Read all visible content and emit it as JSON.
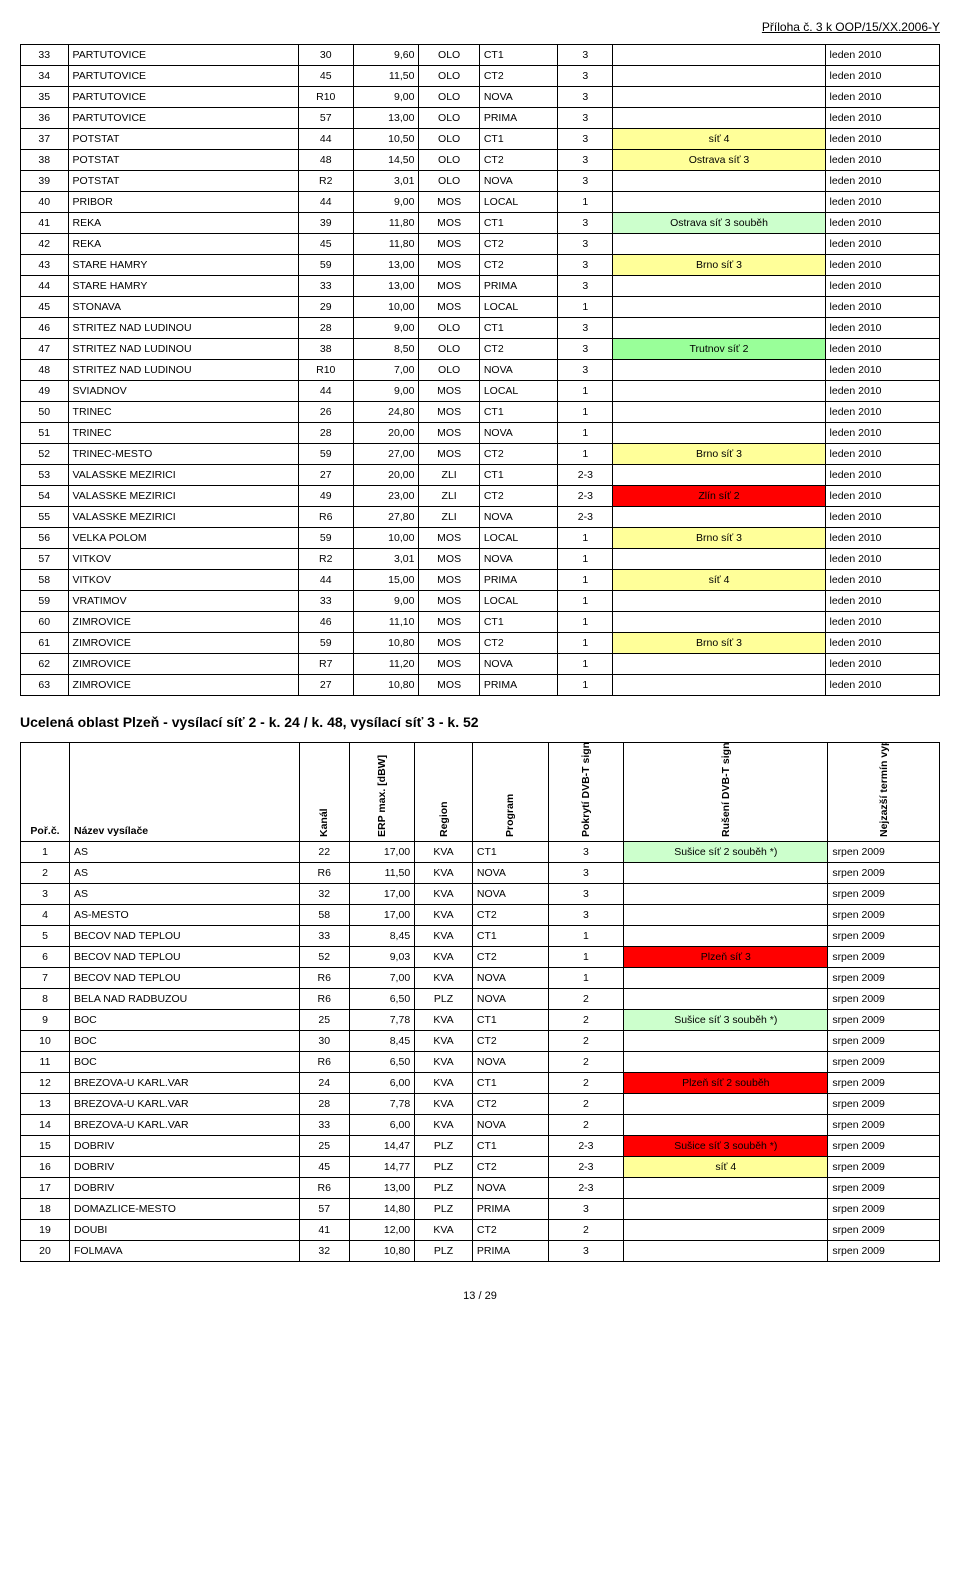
{
  "page_header": "Příloha č. 3 k OOP/15/XX.2006-Y",
  "page_footer": "13 / 29",
  "colors": {
    "yellow": "#ffff99",
    "green": "#ccffcc",
    "lgreen": "#99ff99",
    "red": "#ff0000",
    "yellow2": "#ffff66"
  },
  "table1": {
    "rows": [
      [
        33,
        "PARTUTOVICE",
        "30",
        "9,60",
        "OLO",
        "CT1",
        "3",
        "",
        "",
        "leden 2010"
      ],
      [
        34,
        "PARTUTOVICE",
        "45",
        "11,50",
        "OLO",
        "CT2",
        "3",
        "",
        "",
        "leden 2010"
      ],
      [
        35,
        "PARTUTOVICE",
        "R10",
        "9,00",
        "OLO",
        "NOVA",
        "3",
        "",
        "",
        "leden 2010"
      ],
      [
        36,
        "PARTUTOVICE",
        "57",
        "13,00",
        "OLO",
        "PRIMA",
        "3",
        "",
        "",
        "leden 2010"
      ],
      [
        37,
        "POTSTAT",
        "44",
        "10,50",
        "OLO",
        "CT1",
        "3",
        "",
        "síť 4",
        "leden 2010",
        "yellow"
      ],
      [
        38,
        "POTSTAT",
        "48",
        "14,50",
        "OLO",
        "CT2",
        "3",
        "",
        "Ostrava síť 3",
        "leden 2010",
        "yellow"
      ],
      [
        39,
        "POTSTAT",
        "R2",
        "3,01",
        "OLO",
        "NOVA",
        "3",
        "",
        "",
        "leden 2010"
      ],
      [
        40,
        "PRIBOR",
        "44",
        "9,00",
        "MOS",
        "LOCAL",
        "1",
        "",
        "",
        "leden 2010"
      ],
      [
        41,
        "REKA",
        "39",
        "11,80",
        "MOS",
        "CT1",
        "3",
        "",
        "Ostrava síť 3 souběh",
        "leden 2010",
        "green"
      ],
      [
        42,
        "REKA",
        "45",
        "11,80",
        "MOS",
        "CT2",
        "3",
        "",
        "",
        "leden 2010"
      ],
      [
        43,
        "STARE HAMRY",
        "59",
        "13,00",
        "MOS",
        "CT2",
        "3",
        "",
        "Brno síť 3",
        "leden 2010",
        "yellow"
      ],
      [
        44,
        "STARE HAMRY",
        "33",
        "13,00",
        "MOS",
        "PRIMA",
        "3",
        "",
        "",
        "leden 2010"
      ],
      [
        45,
        "STONAVA",
        "29",
        "10,00",
        "MOS",
        "LOCAL",
        "1",
        "",
        "",
        "leden 2010"
      ],
      [
        46,
        "STRITEZ NAD LUDINOU",
        "28",
        "9,00",
        "OLO",
        "CT1",
        "3",
        "",
        "",
        "leden 2010"
      ],
      [
        47,
        "STRITEZ NAD LUDINOU",
        "38",
        "8,50",
        "OLO",
        "CT2",
        "3",
        "",
        "Trutnov síť 2",
        "leden 2010",
        "lgreen"
      ],
      [
        48,
        "STRITEZ NAD LUDINOU",
        "R10",
        "7,00",
        "OLO",
        "NOVA",
        "3",
        "",
        "",
        "leden 2010"
      ],
      [
        49,
        "SVIADNOV",
        "44",
        "9,00",
        "MOS",
        "LOCAL",
        "1",
        "",
        "",
        "leden 2010"
      ],
      [
        50,
        "TRINEC",
        "26",
        "24,80",
        "MOS",
        "CT1",
        "1",
        "",
        "",
        "leden 2010"
      ],
      [
        51,
        "TRINEC",
        "28",
        "20,00",
        "MOS",
        "NOVA",
        "1",
        "",
        "",
        "leden 2010"
      ],
      [
        52,
        "TRINEC-MESTO",
        "59",
        "27,00",
        "MOS",
        "CT2",
        "1",
        "",
        "Brno síť 3",
        "leden 2010",
        "yellow"
      ],
      [
        53,
        "VALASSKE MEZIRICI",
        "27",
        "20,00",
        "ZLI",
        "CT1",
        "2-3",
        "",
        "",
        "leden 2010"
      ],
      [
        54,
        "VALASSKE MEZIRICI",
        "49",
        "23,00",
        "ZLI",
        "CT2",
        "2-3",
        "",
        "Zlín síť 2",
        "leden 2010",
        "red"
      ],
      [
        55,
        "VALASSKE MEZIRICI",
        "R6",
        "27,80",
        "ZLI",
        "NOVA",
        "2-3",
        "",
        "",
        "leden 2010"
      ],
      [
        56,
        "VELKA POLOM",
        "59",
        "10,00",
        "MOS",
        "LOCAL",
        "1",
        "",
        "Brno síť 3",
        "leden 2010",
        "yellow"
      ],
      [
        57,
        "VITKOV",
        "R2",
        "3,01",
        "MOS",
        "NOVA",
        "1",
        "",
        "",
        "leden 2010"
      ],
      [
        58,
        "VITKOV",
        "44",
        "15,00",
        "MOS",
        "PRIMA",
        "1",
        "",
        "síť 4",
        "leden 2010",
        "yellow"
      ],
      [
        59,
        "VRATIMOV",
        "33",
        "9,00",
        "MOS",
        "LOCAL",
        "1",
        "",
        "",
        "leden 2010"
      ],
      [
        60,
        "ZIMROVICE",
        "46",
        "11,10",
        "MOS",
        "CT1",
        "1",
        "",
        "",
        "leden 2010"
      ],
      [
        61,
        "ZIMROVICE",
        "59",
        "10,80",
        "MOS",
        "CT2",
        "1",
        "",
        "Brno síť 3",
        "leden 2010",
        "yellow"
      ],
      [
        62,
        "ZIMROVICE",
        "R7",
        "11,20",
        "MOS",
        "NOVA",
        "1",
        "",
        "",
        "leden 2010"
      ],
      [
        63,
        "ZIMROVICE",
        "27",
        "10,80",
        "MOS",
        "PRIMA",
        "1",
        "",
        "",
        "leden 2010"
      ]
    ]
  },
  "section_title": "Ucelená oblast Plzeň - vysílací síť 2 - k. 24 / k. 48, vysílací síť 3 - k. 52",
  "table2": {
    "headers": {
      "idx": "Poř.č.",
      "name": "Název vysílače",
      "kanal": "Kanál",
      "erp": "ERP max. [dBW]",
      "region": "Region",
      "program": "Program",
      "pokryti": "Pokrytí DVB-T signálem",
      "ruseni": "Rušení DVB-T signálem",
      "termin": "Nejzazší termín vypnutí"
    },
    "rows": [
      [
        1,
        "AS",
        "22",
        "17,00",
        "KVA",
        "CT1",
        "3",
        "Sušice síť 2 souběh *)",
        "",
        "srpen 2009",
        "green"
      ],
      [
        2,
        "AS",
        "R6",
        "11,50",
        "KVA",
        "NOVA",
        "3",
        "",
        "",
        "srpen 2009"
      ],
      [
        3,
        "AS",
        "32",
        "17,00",
        "KVA",
        "NOVA",
        "3",
        "",
        "",
        "srpen 2009"
      ],
      [
        4,
        "AS-MESTO",
        "58",
        "17,00",
        "KVA",
        "CT2",
        "3",
        "",
        "",
        "srpen 2009"
      ],
      [
        5,
        "BECOV NAD TEPLOU",
        "33",
        "8,45",
        "KVA",
        "CT1",
        "1",
        "",
        "",
        "srpen 2009"
      ],
      [
        6,
        "BECOV NAD TEPLOU",
        "52",
        "9,03",
        "KVA",
        "CT2",
        "1",
        "",
        "Plzeň síť 3",
        "srpen 2009",
        "red"
      ],
      [
        7,
        "BECOV NAD TEPLOU",
        "R6",
        "7,00",
        "KVA",
        "NOVA",
        "1",
        "",
        "",
        "srpen 2009"
      ],
      [
        8,
        "BELA NAD RADBUZOU",
        "R6",
        "6,50",
        "PLZ",
        "NOVA",
        "2",
        "",
        "",
        "srpen 2009"
      ],
      [
        9,
        "BOC",
        "25",
        "7,78",
        "KVA",
        "CT1",
        "2",
        "Sušice síť 3 souběh *)",
        "",
        "srpen 2009",
        "green"
      ],
      [
        10,
        "BOC",
        "30",
        "8,45",
        "KVA",
        "CT2",
        "2",
        "",
        "",
        "srpen 2009"
      ],
      [
        11,
        "BOC",
        "R6",
        "6,50",
        "KVA",
        "NOVA",
        "2",
        "",
        "",
        "srpen 2009"
      ],
      [
        12,
        "BREZOVA-U KARL.VAR",
        "24",
        "6,00",
        "KVA",
        "CT1",
        "2",
        "",
        "Plzeň síť 2 souběh",
        "srpen 2009",
        "red"
      ],
      [
        13,
        "BREZOVA-U KARL.VAR",
        "28",
        "7,78",
        "KVA",
        "CT2",
        "2",
        "",
        "",
        "srpen 2009"
      ],
      [
        14,
        "BREZOVA-U KARL.VAR",
        "33",
        "6,00",
        "KVA",
        "NOVA",
        "2",
        "",
        "",
        "srpen 2009"
      ],
      [
        15,
        "DOBRIV",
        "25",
        "14,47",
        "PLZ",
        "CT1",
        "2-3",
        "",
        "Sušice síť 3 souběh *)",
        "srpen 2009",
        "red"
      ],
      [
        16,
        "DOBRIV",
        "45",
        "14,77",
        "PLZ",
        "CT2",
        "2-3",
        "",
        "síť 4",
        "srpen 2009",
        "yellow"
      ],
      [
        17,
        "DOBRIV",
        "R6",
        "13,00",
        "PLZ",
        "NOVA",
        "2-3",
        "",
        "",
        "srpen 2009"
      ],
      [
        18,
        "DOMAZLICE-MESTO",
        "57",
        "14,80",
        "PLZ",
        "PRIMA",
        "3",
        "",
        "",
        "srpen 2009"
      ],
      [
        19,
        "DOUBI",
        "41",
        "12,00",
        "KVA",
        "CT2",
        "2",
        "",
        "",
        "srpen 2009"
      ],
      [
        20,
        "FOLMAVA",
        "32",
        "10,80",
        "PLZ",
        "PRIMA",
        "3",
        "",
        "",
        "srpen 2009"
      ]
    ]
  }
}
